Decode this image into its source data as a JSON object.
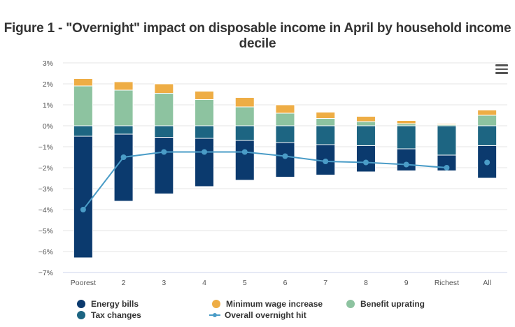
{
  "chart_data": {
    "type": "bar",
    "stacked": true,
    "title": "Figure 1 - \"Overnight\" impact on disposable income in April by household income decile",
    "categories": [
      "Poorest",
      "2",
      "3",
      "4",
      "5",
      "6",
      "7",
      "8",
      "9",
      "Richest",
      "All"
    ],
    "y_ticks": [
      "3%",
      "2%",
      "1%",
      "0%",
      "−1%",
      "−2%",
      "−3%",
      "−4%",
      "−5%",
      "−6%",
      "−7%"
    ],
    "ylim": [
      -7,
      3
    ],
    "grid": true,
    "legend_position": "bottom",
    "series": [
      {
        "name": "Tax changes",
        "kind": "bar",
        "color": "#1d6582",
        "values": [
          -0.5,
          -0.4,
          -0.55,
          -0.6,
          -0.7,
          -0.8,
          -0.9,
          -0.95,
          -1.1,
          -1.4,
          -0.95
        ]
      },
      {
        "name": "Energy bills",
        "kind": "bar",
        "color": "#0b3a6e",
        "values": [
          -5.8,
          -3.2,
          -2.7,
          -2.3,
          -1.9,
          -1.65,
          -1.45,
          -1.25,
          -1.05,
          -0.75,
          -1.55
        ]
      },
      {
        "name": "Benefit uprating",
        "kind": "bar",
        "color": "#8dc3a0",
        "values": [
          1.9,
          1.7,
          1.55,
          1.25,
          0.9,
          0.6,
          0.35,
          0.2,
          0.1,
          0.05,
          0.5
        ]
      },
      {
        "name": "Minimum wage increase",
        "kind": "bar",
        "color": "#eead45",
        "values": [
          0.35,
          0.4,
          0.45,
          0.4,
          0.45,
          0.4,
          0.3,
          0.25,
          0.15,
          0.05,
          0.25
        ]
      },
      {
        "name": "Overall overnight hit",
        "kind": "line",
        "color": "#4a9cc7",
        "values": [
          -4.0,
          -1.5,
          -1.25,
          -1.25,
          -1.25,
          -1.45,
          -1.7,
          -1.75,
          -1.85,
          -2.0,
          -1.75
        ]
      }
    ],
    "legend_order": [
      "Energy bills",
      "Minimum wage increase",
      "Benefit uprating",
      "Tax changes",
      "Overall overnight hit"
    ]
  }
}
